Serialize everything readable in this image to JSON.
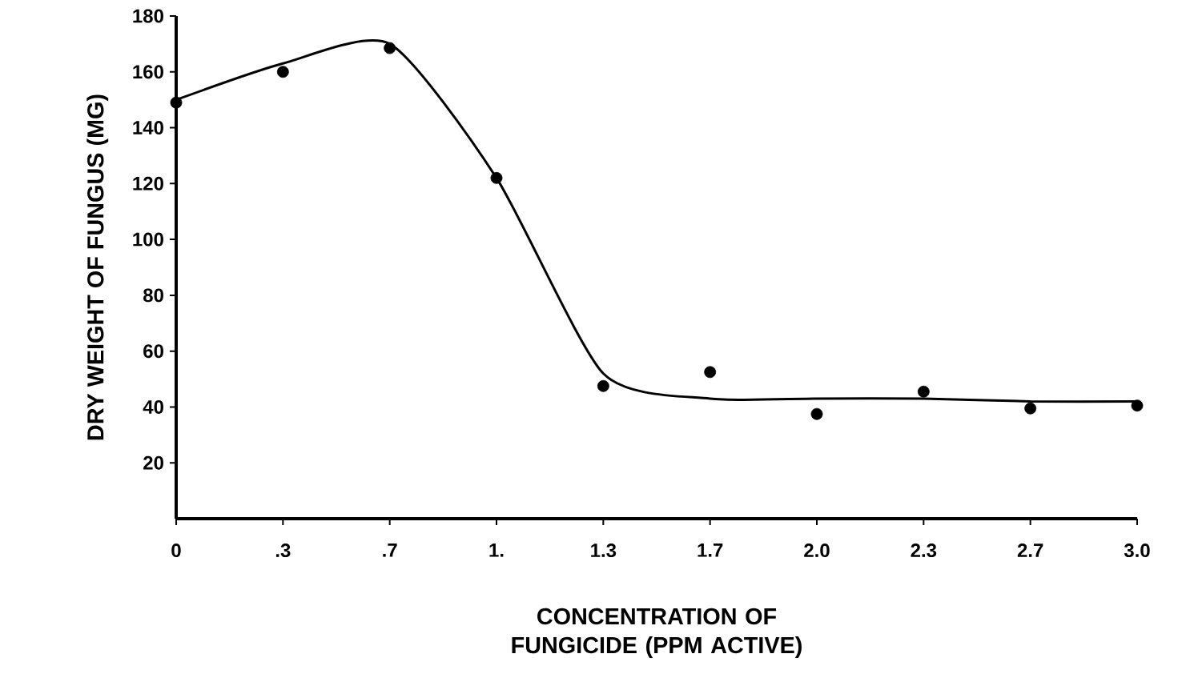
{
  "chart_data": {
    "type": "scatter",
    "xlabel": "CONCENTRATION OF FUNGICIDE (PPM ACTIVE)",
    "ylabel": "DRY WEIGHT OF FUNGUS (MG)",
    "categories": [
      "0",
      ".3",
      ".7",
      "1.",
      "1.3",
      "1.7",
      "2.0",
      "2.3",
      "2.7",
      "3.0"
    ],
    "series": [
      {
        "color": "#000000",
        "marker": "circle",
        "values": [
          149,
          160,
          168.5,
          122,
          47.5,
          52.5,
          37.5,
          45.5,
          39.5,
          40.5
        ]
      },
      {
        "type": "line",
        "color": "#000000",
        "marker": "none",
        "line_style": "solid",
        "values": [
          150,
          163,
          170,
          122,
          52,
          43,
          43,
          43,
          42,
          42
        ]
      }
    ],
    "ylim": [
      0,
      180
    ],
    "yticks": [
      20,
      40,
      60,
      80,
      100,
      120,
      140,
      160,
      180
    ],
    "grid": false
  }
}
